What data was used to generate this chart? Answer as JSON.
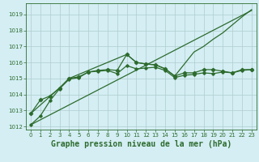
{
  "title": "Graphe pression niveau de la mer (hPa)",
  "xlabel_fontsize": 7,
  "bg_color": "#d4eef4",
  "grid_color": "#b0cccc",
  "line_color": "#2d6b2d",
  "xlim": [
    -0.5,
    23.5
  ],
  "ylim": [
    1011.8,
    1019.7
  ],
  "yticks": [
    1012,
    1013,
    1014,
    1015,
    1016,
    1017,
    1018,
    1019
  ],
  "xticks": [
    0,
    1,
    2,
    3,
    4,
    5,
    6,
    7,
    8,
    9,
    10,
    11,
    12,
    13,
    14,
    15,
    16,
    17,
    18,
    19,
    20,
    21,
    22,
    23
  ],
  "line_straight": {
    "x": [
      0,
      23
    ],
    "y": [
      1012.1,
      1019.25
    ]
  },
  "line_main": {
    "x": [
      0,
      1,
      2,
      3,
      4,
      5,
      6,
      7,
      8,
      9,
      10,
      11,
      12,
      13,
      14,
      15,
      16,
      17,
      18,
      19,
      20,
      21,
      22,
      23
    ],
    "y": [
      1012.8,
      1013.65,
      1013.9,
      1014.4,
      1015.0,
      1015.1,
      1015.4,
      1015.5,
      1015.55,
      1015.5,
      1016.5,
      1016.0,
      1015.9,
      1015.85,
      1015.6,
      1015.15,
      1015.35,
      1015.35,
      1015.55,
      1015.55,
      1015.45,
      1015.35,
      1015.55,
      1015.55
    ]
  },
  "line_upper": {
    "x": [
      0,
      3,
      4,
      10,
      11,
      12,
      13,
      14,
      15,
      16,
      17,
      18,
      19,
      20,
      21,
      22,
      23
    ],
    "y": [
      1012.8,
      1014.4,
      1015.0,
      1016.5,
      1016.0,
      1015.9,
      1015.85,
      1015.6,
      1015.15,
      1015.9,
      1016.65,
      1017.0,
      1017.45,
      1017.85,
      1018.35,
      1018.85,
      1019.3
    ]
  },
  "line_lower": {
    "x": [
      0,
      1,
      2,
      3,
      4,
      5,
      6,
      7,
      8,
      9,
      10,
      11,
      12,
      13,
      14,
      15,
      16,
      17,
      18,
      19,
      20,
      21,
      22,
      23
    ],
    "y": [
      1012.1,
      1012.65,
      1013.6,
      1014.35,
      1014.95,
      1015.05,
      1015.4,
      1015.45,
      1015.5,
      1015.3,
      1015.8,
      1015.6,
      1015.65,
      1015.7,
      1015.5,
      1015.05,
      1015.2,
      1015.25,
      1015.35,
      1015.3,
      1015.4,
      1015.35,
      1015.5,
      1015.55
    ]
  }
}
